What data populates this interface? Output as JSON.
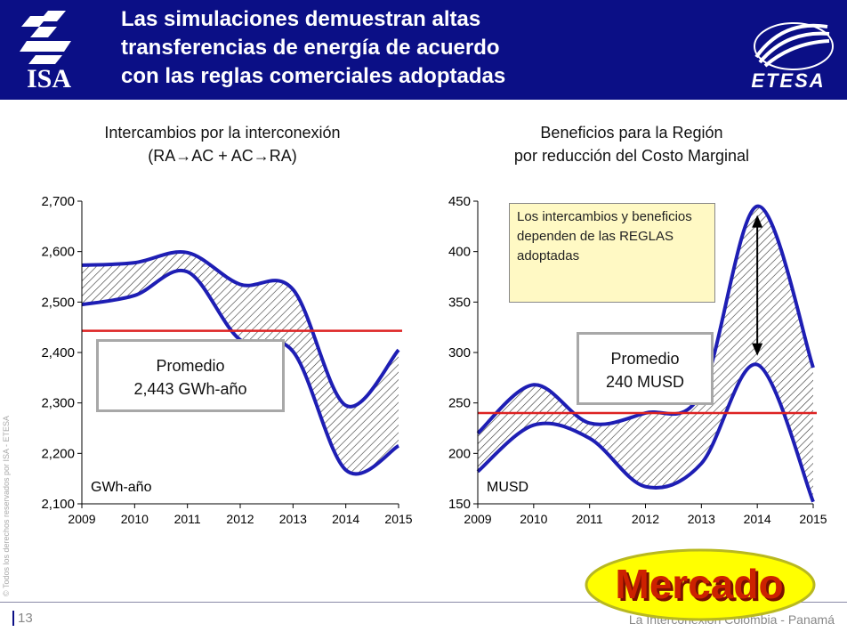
{
  "header": {
    "title_line1": "Las simulaciones demuestran altas",
    "title_line2": "transferencias de energía de acuerdo",
    "title_line3": "con las reglas comerciales adoptadas",
    "logo_left": "ISA",
    "logo_right": "ETESA",
    "bg_color": "#0b0f86"
  },
  "left_panel": {
    "subtitle_line1": "Intercambios por la interconexión",
    "subtitle_line2": "(RA→AC + AC→RA)",
    "callout_line1": "Promedio",
    "callout_line2": "2,443 GWh-año"
  },
  "right_panel": {
    "subtitle_line1": "Beneficios para la Región",
    "subtitle_line2": "por reducción del Costo Marginal",
    "callout_line1": "Promedio",
    "callout_line2": "240 MUSD",
    "note": "Los intercambios y beneficios dependen de las REGLAS adoptadas"
  },
  "chart_data": [
    {
      "type": "area",
      "x": [
        2009,
        2010,
        2011,
        2012,
        2013,
        2014,
        2015
      ],
      "series": [
        {
          "values": [
            2573,
            2578,
            2598,
            2535,
            2525,
            2295,
            2405
          ]
        },
        {
          "values": [
            2495,
            2513,
            2560,
            2425,
            2402,
            2167,
            2215
          ]
        }
      ],
      "reference_line": 2443,
      "unit_label": "GWh-año",
      "yticks": [
        "2,700",
        "2,600",
        "2,500",
        "2,400",
        "2,300",
        "2,200",
        "2,100"
      ],
      "ylim": [
        2100,
        2700
      ],
      "xticks": [
        "2009",
        "2010",
        "2011",
        "2012",
        "2013",
        "2014",
        "2015"
      ],
      "colors": {
        "line": "#1e1eb4",
        "reference": "#dd2222"
      }
    },
    {
      "type": "area",
      "x": [
        2009,
        2010,
        2011,
        2012,
        2013,
        2014,
        2015
      ],
      "series": [
        {
          "values": [
            220,
            268,
            230,
            240,
            260,
            445,
            285
          ]
        },
        {
          "values": [
            182,
            228,
            215,
            167,
            190,
            288,
            152
          ]
        }
      ],
      "reference_line": 240,
      "unit_label": "MUSD",
      "yticks": [
        "450",
        "400",
        "350",
        "300",
        "250",
        "200",
        "150"
      ],
      "ylim": [
        150,
        450
      ],
      "xticks": [
        "2009",
        "2010",
        "2011",
        "2012",
        "2013",
        "2014",
        "2015"
      ],
      "colors": {
        "line": "#1e1eb4",
        "reference": "#dd2222"
      }
    }
  ],
  "sidebar": {
    "copyright": "© Todos los derechos reservados por ISA - ETESA"
  },
  "footer": {
    "page_number": "13",
    "text": "La Interconexión Colombia - Panamá"
  },
  "badge": {
    "label": "Mercado",
    "color": "#ffff00",
    "text_color": "#cc2200"
  }
}
